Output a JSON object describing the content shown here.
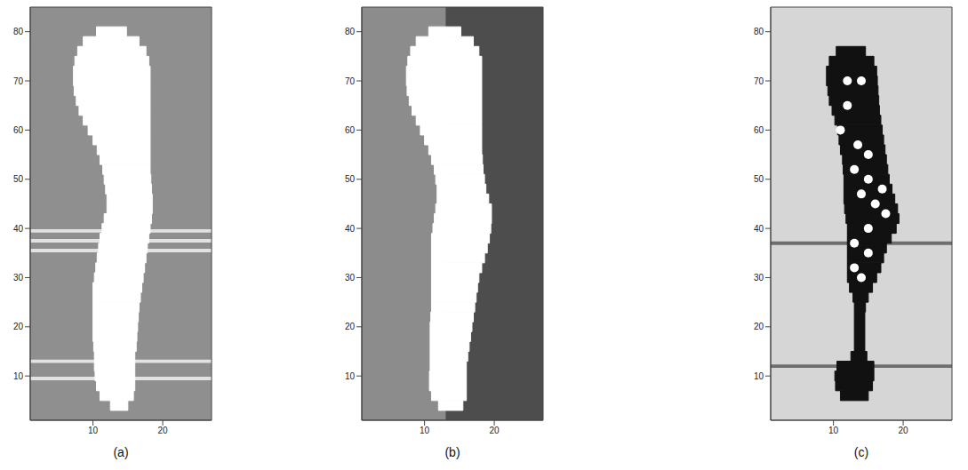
{
  "chart_data": [
    {
      "type": "image",
      "label": "(a)",
      "xlim": [
        1,
        27
      ],
      "ylim": [
        1,
        85
      ],
      "xticks": [
        10,
        20
      ],
      "yticks": [
        10,
        20,
        30,
        40,
        50,
        60,
        70,
        80
      ],
      "background": [
        {
          "from": 1,
          "to": 27,
          "color": "#8f8f8f"
        }
      ],
      "stripes": {
        "y": [
          39.5,
          37.5,
          35.5,
          13,
          9.5
        ],
        "color": "#e2e2e2"
      },
      "shape": {
        "color": "#ffffff",
        "y": [
          4,
          6,
          8,
          10,
          12,
          14,
          16,
          18,
          20,
          22,
          24,
          26,
          28,
          30,
          32,
          34,
          36,
          38,
          40,
          42,
          44,
          46,
          48,
          50,
          52,
          54,
          56,
          58,
          60,
          62,
          64,
          66,
          68,
          70,
          72,
          74,
          76,
          78,
          80
        ],
        "left": [
          12.5,
          11,
          10.5,
          10.3,
          10.2,
          10.2,
          10.1,
          10,
          10,
          10,
          10,
          10,
          10,
          10.2,
          10.4,
          10.6,
          10.8,
          11,
          11.3,
          11.6,
          12,
          12,
          11.8,
          11.6,
          11.4,
          11,
          10.6,
          10,
          9.3,
          8.6,
          8,
          7.6,
          7.3,
          7.2,
          7.2,
          7.4,
          7.8,
          8.6,
          10.5
        ],
        "right": [
          15,
          15.8,
          16,
          16,
          16,
          16,
          16.2,
          16.3,
          16.4,
          16.5,
          16.6,
          16.8,
          17,
          17.2,
          17.4,
          17.6,
          17.8,
          18,
          18.2,
          18.4,
          18.5,
          18.5,
          18.4,
          18.3,
          18.2,
          18.2,
          18.2,
          18.2,
          18.2,
          18.2,
          18.2,
          18.2,
          18.2,
          18.2,
          18.2,
          18,
          17.6,
          16.6,
          14.8
        ]
      }
    },
    {
      "type": "image",
      "label": "(b)",
      "xlim": [
        1,
        27
      ],
      "ylim": [
        1,
        85
      ],
      "xticks": [
        10,
        20
      ],
      "yticks": [
        10,
        20,
        30,
        40,
        50,
        60,
        70,
        80
      ],
      "background": [
        {
          "from": 1,
          "to": 13,
          "color": "#8c8c8c"
        },
        {
          "from": 13,
          "to": 27,
          "color": "#4d4d4d"
        }
      ],
      "shape": {
        "color": "#ffffff",
        "y": [
          4,
          6,
          8,
          10,
          12,
          14,
          16,
          18,
          20,
          22,
          24,
          26,
          28,
          30,
          32,
          34,
          36,
          38,
          40,
          42,
          44,
          46,
          48,
          50,
          52,
          54,
          56,
          58,
          60,
          62,
          64,
          66,
          68,
          70,
          72,
          74,
          76,
          78,
          80
        ],
        "left": [
          12,
          11,
          10.7,
          10.7,
          10.8,
          10.8,
          10.8,
          10.8,
          10.8,
          10.9,
          11,
          11,
          11,
          11,
          11,
          11,
          11,
          11,
          11.2,
          11.4,
          11.6,
          11.8,
          11.8,
          11.6,
          11.4,
          11,
          10.6,
          10,
          9.4,
          8.8,
          8.2,
          7.8,
          7.5,
          7.4,
          7.4,
          7.6,
          8,
          8.8,
          10.6
        ],
        "right": [
          15.5,
          16,
          16,
          16,
          16,
          16.2,
          16.4,
          16.6,
          16.8,
          17,
          17.2,
          17.4,
          17.6,
          17.8,
          18.2,
          18.6,
          19,
          19.3,
          19.5,
          19.6,
          19.6,
          19.2,
          18.8,
          18.6,
          18.4,
          18.3,
          18.2,
          18.2,
          18.2,
          18.2,
          18.2,
          18.2,
          18.2,
          18.2,
          18.2,
          18.2,
          17.8,
          17,
          15.2
        ]
      }
    },
    {
      "type": "image",
      "label": "(c)",
      "xlim": [
        1,
        27
      ],
      "ylim": [
        1,
        85
      ],
      "xticks": [
        10,
        20
      ],
      "yticks": [
        10,
        20,
        30,
        40,
        50,
        60,
        70,
        80
      ],
      "background": [
        {
          "from": 1,
          "to": 27,
          "color": "#d6d6d6"
        }
      ],
      "stripes": {
        "y": [
          37,
          12
        ],
        "color": "#6e6e6e"
      },
      "shape": {
        "color": "#111111",
        "y": [
          6,
          8,
          10,
          12,
          14,
          16,
          18,
          20,
          22,
          24,
          26,
          28,
          30,
          32,
          34,
          36,
          38,
          40,
          42,
          44,
          46,
          48,
          50,
          52,
          54,
          56,
          58,
          60,
          62,
          64,
          66,
          68,
          70,
          72,
          74,
          76
        ],
        "left": [
          11,
          10.3,
          10.2,
          10.5,
          12.5,
          13,
          13,
          13,
          13,
          13,
          12.8,
          12.3,
          12,
          12,
          12,
          12,
          12,
          12,
          11.8,
          11.6,
          11.5,
          11.5,
          11.5,
          11.4,
          11.3,
          11,
          10.8,
          10.6,
          10.2,
          9.8,
          9.4,
          9.2,
          9,
          9,
          9.4,
          10.4
        ],
        "right": [
          15,
          15.6,
          15.8,
          15.8,
          14.8,
          14.5,
          14.5,
          14.5,
          14.5,
          14.6,
          15,
          15.6,
          16.2,
          16.8,
          17.2,
          17.6,
          18.3,
          19,
          19.4,
          19.2,
          18.8,
          18.4,
          18,
          17.8,
          17.6,
          17.4,
          17.2,
          17,
          16.8,
          16.6,
          16.5,
          16.4,
          16.3,
          16.2,
          15.8,
          14.6
        ]
      },
      "spots": {
        "color": "#ffffff",
        "x": [
          12,
          14,
          12,
          11,
          13.5,
          15,
          13,
          15,
          17,
          14,
          16,
          17.5,
          15,
          13,
          15,
          13,
          14
        ],
        "y": [
          70,
          70,
          65,
          60,
          57,
          55,
          52,
          50,
          48,
          47,
          45,
          43,
          40,
          37,
          35,
          32,
          30
        ]
      }
    }
  ]
}
